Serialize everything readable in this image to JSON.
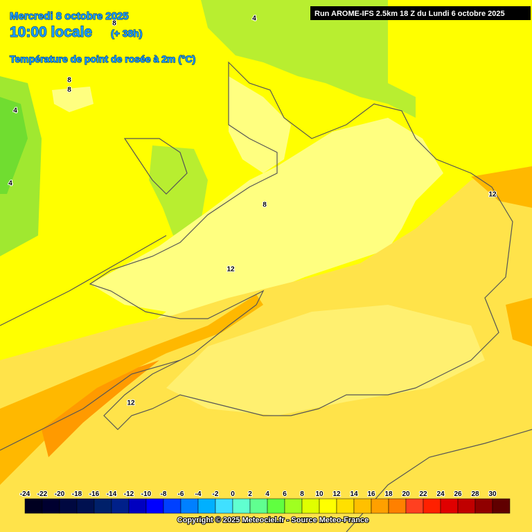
{
  "header": {
    "date": "Mercredi 8 octobre 2025",
    "time": "10:00 locale",
    "lead": "(+ 38h)",
    "variable": "Température de point de rosée à 2m (°C)"
  },
  "run_label": "Run AROME-IFS 2.5km 18 Z du Lundi 6 octobre 2025",
  "contour_labels": [
    "8",
    "4",
    "8",
    "8",
    "4",
    "4",
    "8",
    "12",
    "12",
    "12"
  ],
  "legend": {
    "ticks": [
      -24,
      -22,
      -20,
      -18,
      -16,
      -14,
      -12,
      -10,
      -8,
      -6,
      -4,
      -2,
      0,
      2,
      4,
      6,
      8,
      10,
      12,
      14,
      16,
      18,
      20,
      22,
      24,
      26,
      28,
      30
    ]
  },
  "copyright": "Copyright © 2025 Meteociel.fr - Source Meteo-France"
}
